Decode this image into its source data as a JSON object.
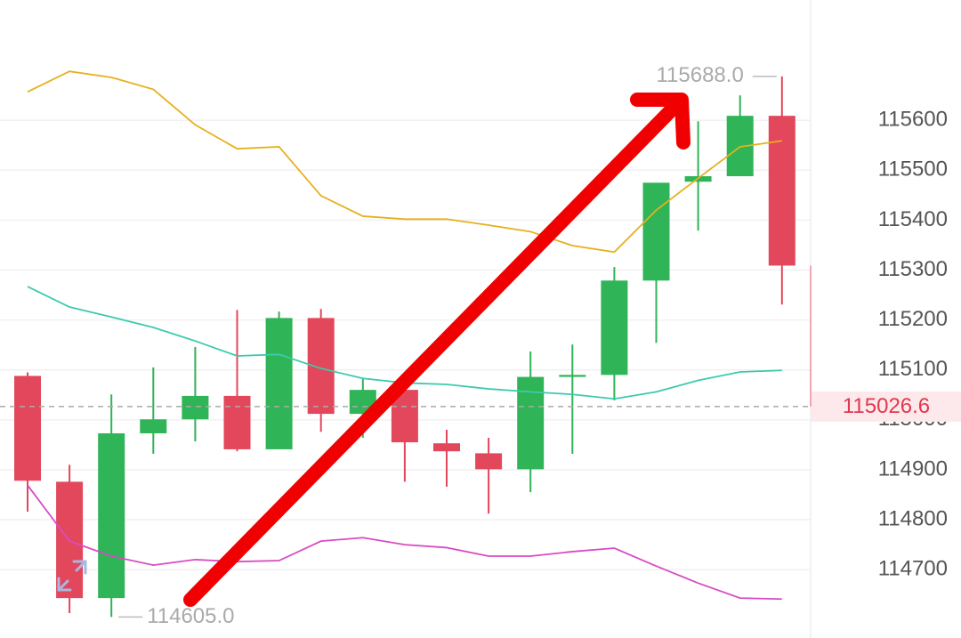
{
  "chart_data": {
    "type": "candlestick",
    "open": [
      115088,
      114876,
      114643,
      114973,
      115001,
      115048,
      114941,
      115204,
      115012,
      115060,
      114953,
      114933,
      114901,
      115086,
      115090,
      115279,
      115477,
      115488,
      115609
    ],
    "high": [
      115095,
      114910,
      115051,
      115105,
      115146,
      115220,
      115217,
      115222,
      115083,
      115062,
      114980,
      114964,
      115137,
      115151,
      115306,
      115475,
      115598,
      115650,
      115688
    ],
    "low": [
      114816,
      114613,
      114605,
      114932,
      114957,
      114937,
      114941,
      114976,
      114964,
      114876,
      114866,
      114812,
      114855,
      114932,
      115039,
      115154,
      115379,
      115488,
      115231
    ],
    "close": [
      114878,
      114643,
      114973,
      115001,
      115048,
      114941,
      115204,
      115012,
      115060,
      114955,
      114937,
      114901,
      115086,
      115090,
      115279,
      115475,
      115488,
      115609,
      115309
    ],
    "up_color": "#2fb457",
    "down_color": "#e2475b",
    "lines": [
      {
        "color": "#e6b01e",
        "values": [
          115657,
          115698,
          115686,
          115662,
          115591,
          115543,
          115547,
          115449,
          115408,
          115402,
          115402,
          115390,
          115377,
          115349,
          115336,
          115420,
          115484,
          115547,
          115559
        ]
      },
      {
        "color": "#3ccaae",
        "values": [
          115267,
          115226,
          115206,
          115185,
          115158,
          115128,
          115131,
          115103,
          115083,
          115074,
          115071,
          115062,
          115056,
          115051,
          115042,
          115056,
          115079,
          115096,
          115099
        ]
      },
      {
        "color": "#d84cc3",
        "values": [
          114869,
          114757,
          114727,
          114709,
          114720,
          114716,
          114718,
          114757,
          114764,
          114750,
          114744,
          114727,
          114727,
          114736,
          114743,
          114707,
          114673,
          114643,
          114641
        ]
      }
    ],
    "ylim": [
      114563,
      115841
    ],
    "yticks": [
      114700,
      114800,
      114900,
      115000,
      115100,
      115200,
      115300,
      115400,
      115500,
      115600
    ],
    "grid": true,
    "max_annotation": {
      "value": 115688,
      "label": "115688.0"
    },
    "min_annotation": {
      "value": 114605,
      "label": "114605.0"
    },
    "current_price": 115026.6
  }
}
